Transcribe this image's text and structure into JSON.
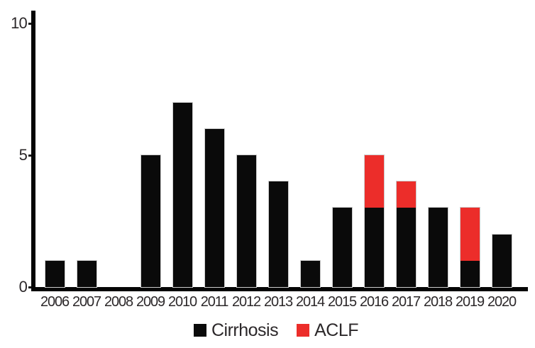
{
  "figure": {
    "background": "#ffffff",
    "title": ""
  },
  "colors": {
    "axis": "#050505",
    "text": "#2c282a",
    "bar_outline": "#cccccc",
    "cirrhosis": "#0a0a0a",
    "aclf": "#ec2d2a"
  },
  "chart_data": {
    "type": "bar",
    "stacked": true,
    "title": "",
    "xlabel": "",
    "ylabel": "",
    "categories": [
      "2006",
      "2007",
      "2008",
      "2009",
      "2010",
      "2011",
      "2012",
      "2013",
      "2014",
      "2015",
      "2016",
      "2017",
      "2018",
      "2019",
      "2020"
    ],
    "series": [
      {
        "name": "Cirrhosis",
        "color": "#0a0a0a",
        "values": [
          1,
          1,
          0,
          5,
          7,
          6,
          5,
          4,
          1,
          3,
          3,
          3,
          3,
          1,
          2
        ]
      },
      {
        "name": "ACLF",
        "color": "#ec2d2a",
        "values": [
          0,
          0,
          0,
          0,
          0,
          0,
          0,
          0,
          0,
          0,
          2,
          1,
          0,
          2,
          0
        ]
      }
    ],
    "totals": [
      1,
      1,
      0,
      5,
      7,
      6,
      5,
      4,
      1,
      3,
      5,
      4,
      3,
      3,
      2
    ],
    "ylim": [
      0,
      10
    ],
    "yticks": [
      0,
      5,
      10
    ],
    "grid": false,
    "legend_position": "bottom"
  }
}
